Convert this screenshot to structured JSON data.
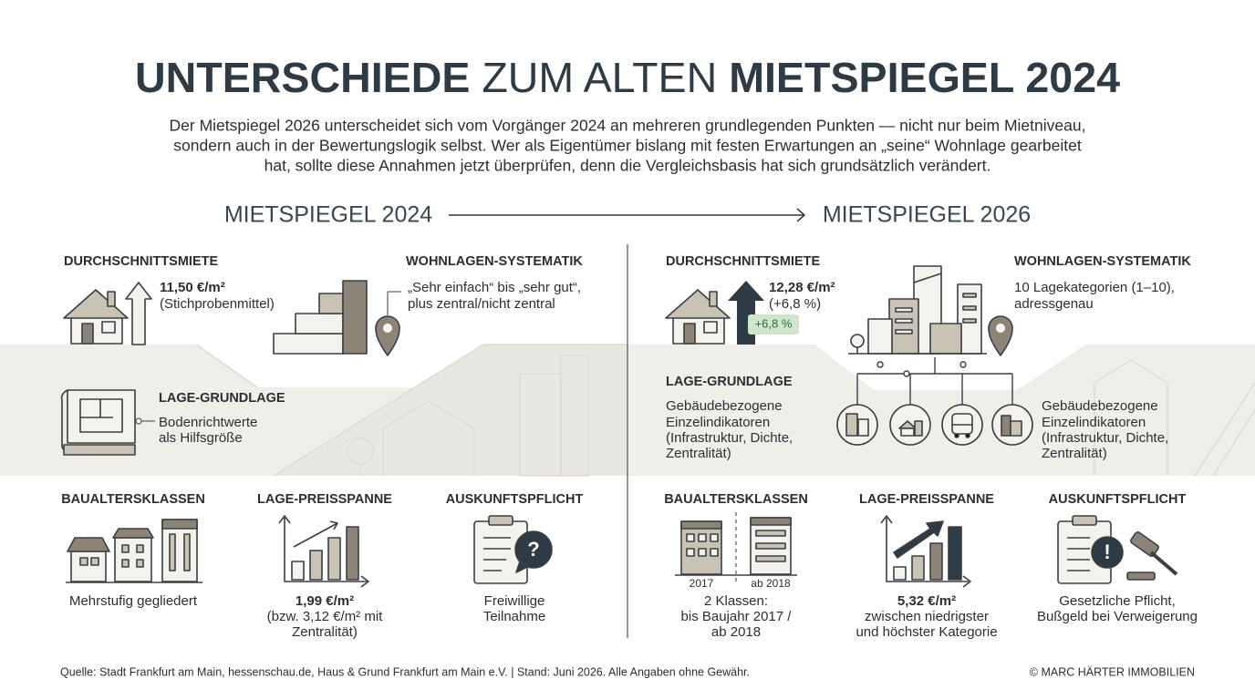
{
  "header": {
    "title": [
      "UNTERSCHIEDE",
      "ZUM ALTEN",
      "MIETSPIEGEL 2024"
    ],
    "intro": [
      "Der Mietspiegel 2026 unterscheidet sich vom Vorgänger 2024 an mehreren grundlegenden Punkten — nicht nur beim Mietniveau,",
      "sondern auch in der Bewertungslogik selbst. Wer als Eigentümer bislang mit festen Erwartungen an „seine“ Wohnlage gearbeitet",
      "hat, sollte diese Annahmen jetzt überprüfen, denn die Vergleichsbasis hat sich grundsätzlich verändert."
    ]
  },
  "comparison": {
    "from": "MIETSPIEGEL 2024",
    "to": "MIETSPIEGEL 2026"
  },
  "old": {
    "rent": {
      "heading": "DURCHSCHNITTSMIETE",
      "value": "11,50 €/m²",
      "note": "(Stichprobenmittel)"
    },
    "location_system": {
      "heading": "WOHNLAGEN-SYSTEMATIK",
      "lines": [
        "„Sehr einfach“ bis „sehr gut“,",
        "plus zentral/nicht zentral"
      ]
    },
    "location_basis": {
      "heading": "LAGE-GRUNDLAGE",
      "lines": [
        "Bodenrichtwerte",
        "als Hilfsgröße"
      ]
    },
    "age_classes": {
      "heading": "BAUALTERSKLASSEN",
      "lines": [
        "Mehrstufig gegliedert"
      ]
    },
    "price_range": {
      "heading": "LAGE-PREISSPANNE",
      "value": "1,99 €/m²",
      "lines": [
        "(bzw. 3,12 €/m² mit",
        "Zentralität)"
      ]
    },
    "disclosure": {
      "heading": "AUSKUNFTSPFLICHT",
      "lines": [
        "Freiwillige",
        "Teilnahme"
      ]
    }
  },
  "new": {
    "rent": {
      "heading": "DURCHSCHNITTSMIETE",
      "value": "12,28 €/m²",
      "note": "(+6,8 %)",
      "badge": "+6,8 %"
    },
    "location_system": {
      "heading": "WOHNLAGEN-SYSTEMATIK",
      "lines": [
        "10 Lagekategorien (1–10),",
        "adressgenau"
      ]
    },
    "location_basis": {
      "heading": "LAGE-GRUNDLAGE",
      "lines": [
        "Gebäudebezogene",
        "Einzelindikatoren",
        "(Infrastruktur, Dichte,",
        "Zentralität)"
      ]
    },
    "age_classes": {
      "heading": "BAUALTERSKLASSEN",
      "labels": [
        "2017",
        "ab 2018"
      ],
      "lines": [
        "2 Klassen:",
        "bis Baujahr 2017 /",
        "ab 2018"
      ]
    },
    "price_range": {
      "heading": "LAGE-PREISSPANNE",
      "value": "5,32 €/m²",
      "lines": [
        "zwischen niedrigster",
        "und höchster Kategorie"
      ]
    },
    "disclosure": {
      "heading": "AUSKUNFTSPFLICHT",
      "lines": [
        "Gesetzliche Pflicht,",
        "Bußgeld bei Verweigerung"
      ]
    }
  },
  "footer": {
    "source": "Quelle: Stadt Frankfurt am Main, hessenschau.de, Haus & Grund Frankfurt am Main e.V. | Stand: Juni 2026. Alle Angaben ohne Gewähr.",
    "copyright": "© MARC HÄRTER IMMOBILIEN"
  }
}
